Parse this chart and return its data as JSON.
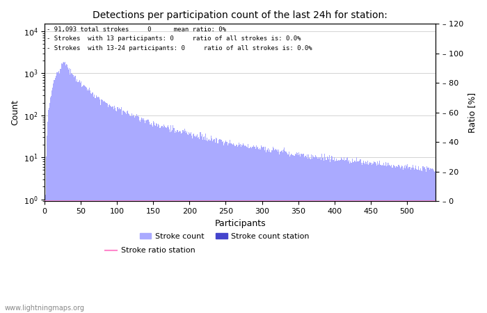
{
  "title": "Detections per participation count of the last 24h for station:",
  "xlabel": "Participants",
  "ylabel_left": "Count",
  "ylabel_right": "Ratio [%]",
  "annotation_lines": [
    "91,093 total strokes     0      mean ratio: 0%",
    "Strokes  with 13 participants: 0     ratio of all strokes is: 0.0%",
    "Strokes  with 13-24 participants: 0     ratio of all strokes is: 0.0%"
  ],
  "bar_color": "#aaaaff",
  "station_bar_color": "#4444cc",
  "ratio_line_color": "#ff88cc",
  "xlim": [
    0,
    540
  ],
  "ylim_right": [
    0,
    120
  ],
  "right_ticks": [
    0,
    20,
    40,
    60,
    80,
    100,
    120
  ],
  "watermark": "www.lightningmaps.org",
  "legend_entries": [
    "Stroke count",
    "Stroke count station",
    "Stroke ratio station"
  ],
  "num_participants": 540
}
